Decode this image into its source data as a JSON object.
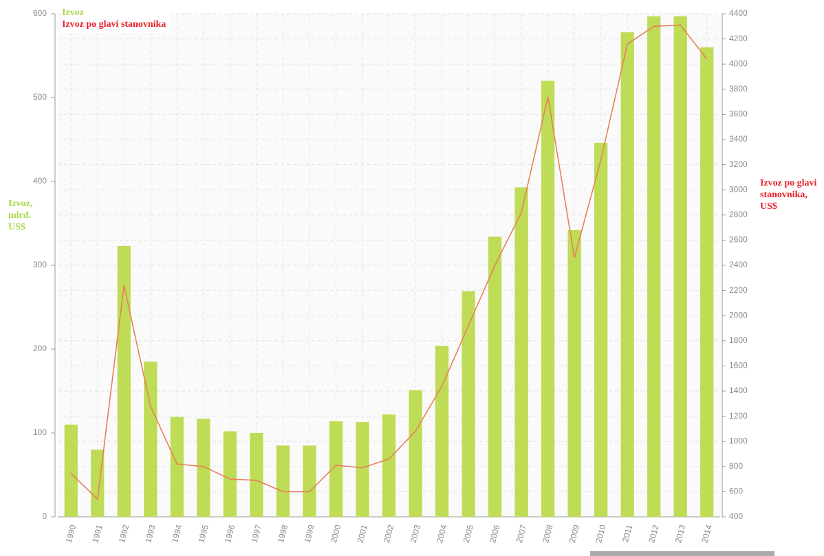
{
  "chart_data": {
    "type": "bar_line",
    "categories": [
      "1990",
      "1991",
      "1992",
      "1993",
      "1994",
      "1995",
      "1996",
      "1997",
      "1998",
      "1999",
      "2000",
      "2001",
      "2002",
      "2003",
      "2004",
      "2005",
      "2006",
      "2007",
      "2008",
      "2009",
      "2010",
      "2011",
      "2012",
      "2013",
      "2014"
    ],
    "series": [
      {
        "name": "Izvoz",
        "color": "#bedc55",
        "type": "bar",
        "values": [
          110,
          80,
          323,
          185,
          119,
          117,
          102,
          100,
          85,
          85,
          114,
          113,
          122,
          151,
          204,
          269,
          334,
          393,
          520,
          342,
          446,
          578,
          597,
          597,
          560
        ]
      },
      {
        "name": "Izvoz po glavi stanovnika",
        "color": "#e8805a",
        "type": "line",
        "axis": "y2",
        "values": [
          745,
          540,
          2240,
          1280,
          820,
          800,
          700,
          690,
          600,
          600,
          810,
          790,
          860,
          1080,
          1440,
          1920,
          2400,
          2820,
          3740,
          2460,
          3240,
          4160,
          4300,
          4310,
          4040
        ]
      }
    ],
    "y_label": "Izvoz, mlrd. US$",
    "y2_label": "Izvoz po glavi stanovnika, US$",
    "ylim": [
      0,
      600
    ],
    "yticks": [
      0,
      100,
      200,
      300,
      400,
      500,
      600
    ],
    "y2lim": [
      400,
      4400
    ],
    "y2ticks": [
      400,
      600,
      800,
      1000,
      1200,
      1400,
      1600,
      1800,
      2000,
      2200,
      2400,
      2600,
      2800,
      3000,
      3200,
      3400,
      3600,
      3800,
      4000,
      4200,
      4400
    ],
    "grid": true,
    "legend": "top-left"
  }
}
